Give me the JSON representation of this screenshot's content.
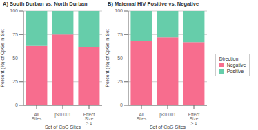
{
  "chart_data": [
    {
      "type": "bar",
      "stacked": true,
      "title": "A) South Durban vs. North Durban",
      "xlabel": "Set of CpG Sites",
      "ylabel": "Percent (%) of CpGs in Set",
      "categories": [
        "All Sites",
        "p<0.001",
        "Effect Size > 1"
      ],
      "series": [
        {
          "name": "Negative",
          "color": "#F76D8E",
          "values": [
            63,
            75,
            62
          ]
        },
        {
          "name": "Positive",
          "color": "#66CDAA",
          "values": [
            37,
            25,
            38
          ]
        }
      ],
      "hline": 50,
      "ylim": [
        0,
        100
      ],
      "yticks": [
        0,
        25,
        50,
        75,
        100
      ],
      "grid": true
    },
    {
      "type": "bar",
      "stacked": true,
      "title": "B) Maternal HIV Positive vs. Negative",
      "xlabel": "Set of CpG Sites",
      "ylabel": "Percent (%) of CpGs in Set",
      "categories": [
        "All Sites",
        "p<0.001",
        "Effect Size > 1"
      ],
      "series": [
        {
          "name": "Negative",
          "color": "#F76D8E",
          "values": [
            68,
            72,
            67
          ]
        },
        {
          "name": "Positive",
          "color": "#66CDAA",
          "values": [
            32,
            28,
            33
          ]
        }
      ],
      "hline": 50,
      "ylim": [
        0,
        100
      ],
      "yticks": [
        0,
        25,
        50,
        75,
        100
      ],
      "grid": true,
      "legend": "right",
      "legend_title": "Direction"
    }
  ]
}
